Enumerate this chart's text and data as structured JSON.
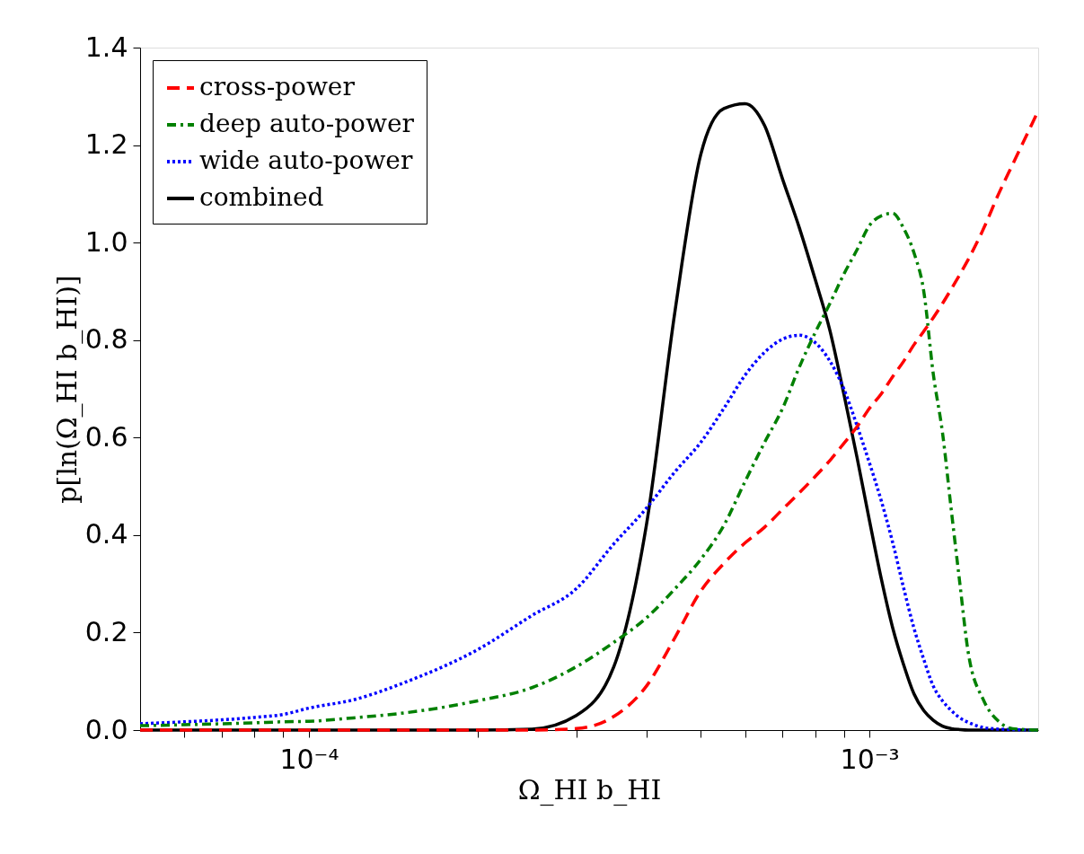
{
  "chart_data": {
    "type": "line",
    "xlabel": "Ω_HI b_HI",
    "ylabel": "p[ln(Ω_HI b_HI)]",
    "log": "x",
    "grid": false,
    "legend": "top left",
    "marker": "none",
    "xlim": [
      5e-05,
      0.002
    ],
    "ylim": [
      0,
      1.4
    ],
    "xticks": [
      {
        "value": 6e-05,
        "label": null
      },
      {
        "value": 7e-05,
        "label": null
      },
      {
        "value": 8e-05,
        "label": null
      },
      {
        "value": 9e-05,
        "label": null
      },
      {
        "value": 0.0001,
        "label": "10⁻⁴"
      },
      {
        "value": 0.0002,
        "label": null
      },
      {
        "value": 0.0003,
        "label": null
      },
      {
        "value": 0.0004,
        "label": null
      },
      {
        "value": 0.0005,
        "label": null
      },
      {
        "value": 0.0006,
        "label": null
      },
      {
        "value": 0.0007,
        "label": null
      },
      {
        "value": 0.0008,
        "label": null
      },
      {
        "value": 0.0009,
        "label": null
      },
      {
        "value": 0.001,
        "label": "10⁻³"
      }
    ],
    "yticks": [
      {
        "value": 0,
        "label": "0.0"
      },
      {
        "value": 0.2,
        "label": "0.2"
      },
      {
        "value": 0.4,
        "label": "0.4"
      },
      {
        "value": 0.6,
        "label": "0.6"
      },
      {
        "value": 0.8,
        "label": "0.8"
      },
      {
        "value": 1.0,
        "label": "1.0"
      },
      {
        "value": 1.2,
        "label": "1.2"
      },
      {
        "value": 1.4,
        "label": "1.4"
      }
    ],
    "x": [
      5e-05,
      6e-05,
      7e-05,
      8e-05,
      9e-05,
      0.0001,
      0.00012,
      0.00015,
      0.0002,
      0.00025,
      0.0003,
      0.00035,
      0.0004,
      0.00045,
      0.0005,
      0.00055,
      0.0006,
      0.00065,
      0.0007,
      0.00075,
      0.0008,
      0.00085,
      0.0009,
      0.00095,
      0.001,
      0.00105,
      0.0011,
      0.00115,
      0.0012,
      0.00125,
      0.0013,
      0.00135,
      0.0014,
      0.00145,
      0.0015,
      0.0016,
      0.0017,
      0.0018,
      0.002
    ],
    "series": [
      {
        "name": "cross-power",
        "color": "#ff0000",
        "line_style": "dashed",
        "values": [
          0,
          0,
          0,
          0,
          0,
          0,
          0,
          0,
          0,
          0,
          0.003,
          0.028,
          0.09,
          0.19,
          0.285,
          0.342,
          0.384,
          0.416,
          0.453,
          0.487,
          0.52,
          0.553,
          0.588,
          0.622,
          0.66,
          0.69,
          0.725,
          0.756,
          0.79,
          0.818,
          0.846,
          0.875,
          0.905,
          0.935,
          0.965,
          1.03,
          1.1,
          1.16,
          1.27
        ]
      },
      {
        "name": "deep auto-power",
        "color": "#008000",
        "line_style": "dashdot",
        "values": [
          0.009,
          0.011,
          0.013,
          0.015,
          0.017,
          0.018,
          0.025,
          0.036,
          0.06,
          0.087,
          0.13,
          0.18,
          0.23,
          0.29,
          0.35,
          0.42,
          0.51,
          0.59,
          0.66,
          0.745,
          0.815,
          0.875,
          0.935,
          0.985,
          1.035,
          1.055,
          1.06,
          1.03,
          0.98,
          0.9,
          0.73,
          0.61,
          0.45,
          0.3,
          0.16,
          0.06,
          0.018,
          0.003,
          0
        ]
      },
      {
        "name": "wide auto-power",
        "color": "#0000ff",
        "line_style": "dotted",
        "values": [
          0.013,
          0.017,
          0.021,
          0.026,
          0.032,
          0.045,
          0.062,
          0.1,
          0.165,
          0.235,
          0.29,
          0.382,
          0.455,
          0.53,
          0.59,
          0.66,
          0.728,
          0.775,
          0.802,
          0.81,
          0.795,
          0.757,
          0.7,
          0.625,
          0.548,
          0.47,
          0.385,
          0.293,
          0.21,
          0.145,
          0.09,
          0.06,
          0.04,
          0.025,
          0.016,
          0.005,
          0.002,
          0.001,
          0
        ]
      },
      {
        "name": "combined",
        "color": "#000000",
        "line_style": "solid",
        "values": [
          0,
          0,
          0,
          0,
          0,
          0,
          0,
          0,
          0,
          0.002,
          0.03,
          0.13,
          0.42,
          0.86,
          1.18,
          1.275,
          1.285,
          1.24,
          1.13,
          1.03,
          0.925,
          0.82,
          0.69,
          0.56,
          0.43,
          0.31,
          0.21,
          0.135,
          0.075,
          0.04,
          0.02,
          0.008,
          0.003,
          0.001,
          0,
          0,
          0,
          0,
          0
        ]
      }
    ]
  }
}
